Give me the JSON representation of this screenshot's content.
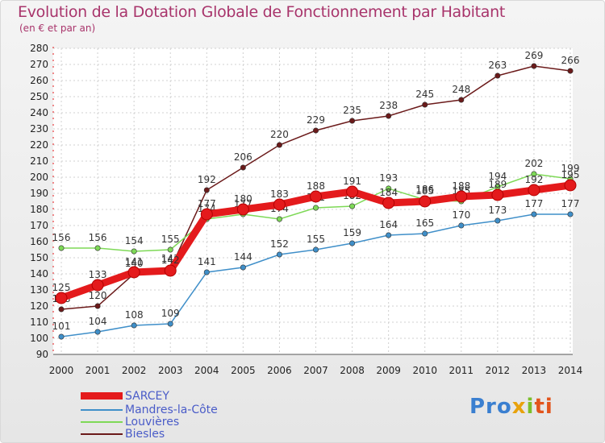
{
  "chart_data": {
    "type": "line",
    "title": "Evolution de la Dotation Globale de Fonctionnement par Habitant",
    "subtitle": "(en € et par an)",
    "xlabel": "",
    "ylabel": "",
    "x": [
      "2000",
      "2001",
      "2002",
      "2003",
      "2004",
      "2005",
      "2006",
      "2007",
      "2008",
      "2009",
      "2010",
      "2011",
      "2012",
      "2013",
      "2014"
    ],
    "ylim": [
      90,
      280
    ],
    "yticks": [
      "90",
      "100",
      "110",
      "120",
      "130",
      "140",
      "150",
      "160",
      "170",
      "180",
      "190",
      "200",
      "210",
      "220",
      "230",
      "240",
      "250",
      "260",
      "270",
      "280"
    ],
    "grid": true,
    "legend": "bottom-left",
    "series": [
      {
        "name": "SARCEY",
        "color": "#e41a1c",
        "values": [
          125,
          133,
          141,
          142,
          177,
          180,
          183,
          188,
          191,
          184,
          185,
          188,
          189,
          192,
          195
        ],
        "labels": [
          "125",
          "133",
          "141",
          "142",
          "177",
          "180",
          "183",
          "188",
          "191",
          "184",
          "185",
          "188",
          "189",
          "192",
          "195"
        ]
      },
      {
        "name": "Mandres-la-Côte",
        "color": "#3f8fc9",
        "values": [
          101,
          104,
          108,
          109,
          141,
          144,
          152,
          155,
          159,
          164,
          165,
          170,
          173,
          177,
          177
        ],
        "labels": [
          "101",
          "104",
          "108",
          "109",
          "141",
          "144",
          "152",
          "155",
          "159",
          "164",
          "165",
          "170",
          "173",
          "177",
          "177"
        ]
      },
      {
        "name": "Louvières",
        "color": "#7ed957",
        "values": [
          156,
          156,
          154,
          155,
          174,
          177,
          174,
          181,
          182,
          193,
          186,
          185,
          194,
          202,
          199
        ],
        "labels": [
          "156",
          "156",
          "154",
          "155",
          "174",
          "177",
          "174",
          "181",
          "182",
          "193",
          "186",
          "185",
          "194",
          "202",
          "199"
        ]
      },
      {
        "name": "Biesles",
        "color": "#6b1a1a",
        "values": [
          118,
          120,
          140,
          143,
          192,
          206,
          220,
          229,
          235,
          238,
          245,
          248,
          263,
          269,
          266
        ],
        "labels": [
          "118",
          "120",
          "140",
          "143",
          "192",
          "206",
          "220",
          "229",
          "235",
          "238",
          "245",
          "248",
          "263",
          "269",
          "266"
        ]
      }
    ]
  },
  "brand": {
    "p1": "Pro",
    "p2": "x",
    "p3": "i",
    "p4": "ti"
  }
}
